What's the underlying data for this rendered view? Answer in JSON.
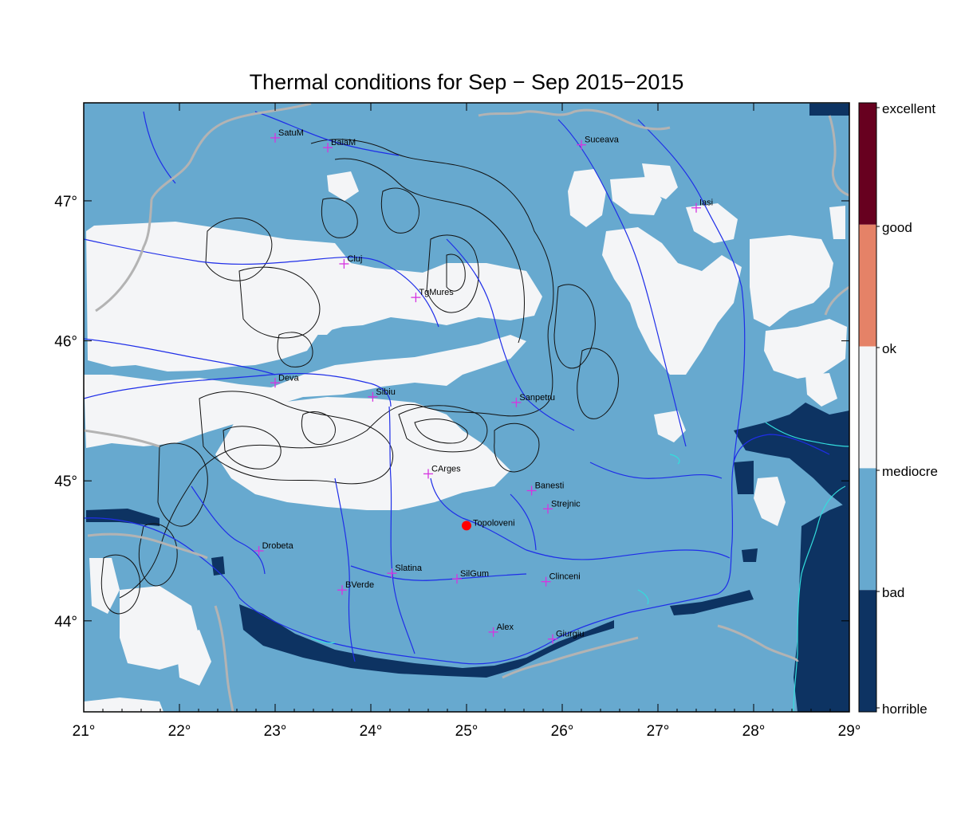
{
  "title": "Thermal conditions for Sep − Sep  2015−2015",
  "axes": {
    "lon_ticks": [
      "21°",
      "22°",
      "23°",
      "24°",
      "25°",
      "26°",
      "27°",
      "28°",
      "29°"
    ],
    "lat_ticks": [
      "47°",
      "46°",
      "45°",
      "44°"
    ],
    "lon_range": [
      21,
      29
    ],
    "lat_range": [
      43.35,
      47.7
    ]
  },
  "legend": {
    "classes": [
      {
        "label": "excellent",
        "color": "#67001f"
      },
      {
        "label": "good",
        "color": "#e58267"
      },
      {
        "label": "ok",
        "color": "#f7f7f7"
      },
      {
        "label": "mediocre",
        "color": "#67a9cf"
      },
      {
        "label": "bad",
        "color": "#0d3362"
      },
      {
        "label": "horrible",
        "color": ""
      }
    ]
  },
  "colors": {
    "bad": "#67a9cf",
    "ok": "#f4f5f7",
    "horrible": "#0d3362",
    "river": "#1f2ee8",
    "border": "#b3b3b3",
    "contour": "#111111",
    "coast": "#33dddd",
    "station": "#d633e0",
    "highlight": "#ff0000"
  },
  "stations": [
    {
      "name": "SatuM",
      "lon": 23.0,
      "lat": 47.45
    },
    {
      "name": "BaiaM",
      "lon": 23.55,
      "lat": 47.38
    },
    {
      "name": "Suceava",
      "lon": 26.2,
      "lat": 47.4
    },
    {
      "name": "Iasi",
      "lon": 27.4,
      "lat": 46.95
    },
    {
      "name": "Cluj",
      "lon": 23.72,
      "lat": 46.55
    },
    {
      "name": "TgMures",
      "lon": 24.47,
      "lat": 46.31
    },
    {
      "name": "Deva",
      "lon": 23.0,
      "lat": 45.7
    },
    {
      "name": "Sibiu",
      "lon": 24.02,
      "lat": 45.6
    },
    {
      "name": "Sanpetru",
      "lon": 25.52,
      "lat": 45.56
    },
    {
      "name": "CArges",
      "lon": 24.6,
      "lat": 45.05
    },
    {
      "name": "Banesti",
      "lon": 25.68,
      "lat": 44.93
    },
    {
      "name": "Strejnic",
      "lon": 25.85,
      "lat": 44.8
    },
    {
      "name": "Drobeta",
      "lon": 22.83,
      "lat": 44.5
    },
    {
      "name": "BVerde",
      "lon": 23.7,
      "lat": 44.22
    },
    {
      "name": "Slatina",
      "lon": 24.22,
      "lat": 44.34
    },
    {
      "name": "SilGum",
      "lon": 24.9,
      "lat": 44.3
    },
    {
      "name": "Clinceni",
      "lon": 25.83,
      "lat": 44.28
    },
    {
      "name": "Alex",
      "lon": 25.28,
      "lat": 43.92
    },
    {
      "name": "Giurgiu",
      "lon": 25.9,
      "lat": 43.87
    }
  ],
  "highlight": {
    "name": "Topoloveni",
    "lon": 25.0,
    "lat": 44.68
  }
}
